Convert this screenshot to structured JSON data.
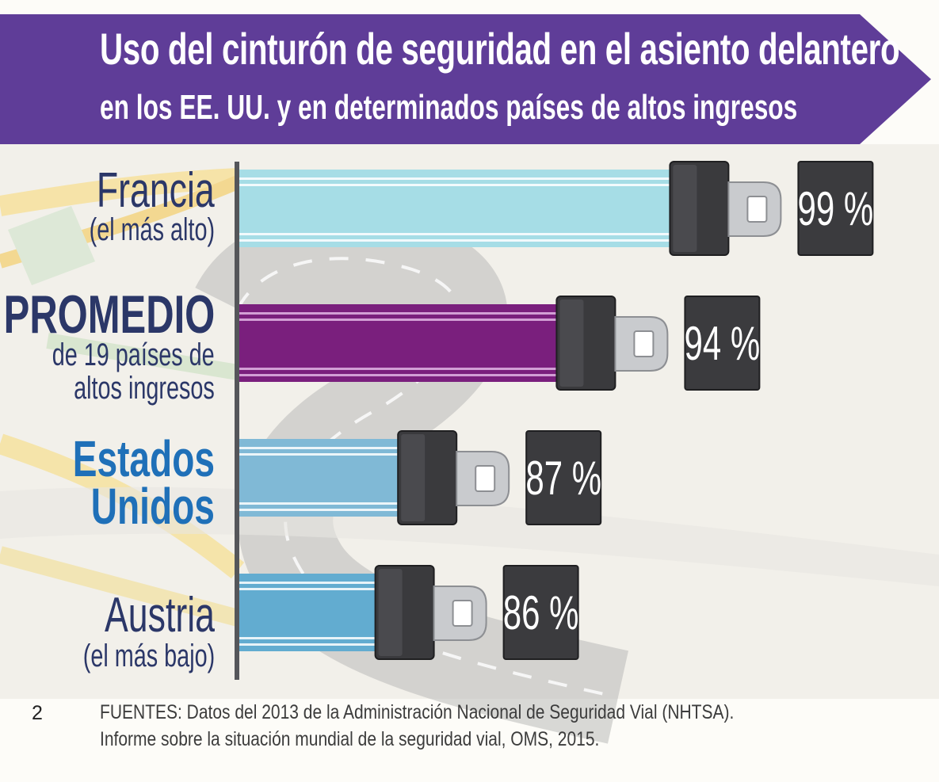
{
  "header": {
    "title": "Uso del cinturón de seguridad en el asiento delantero",
    "subtitle": "en los EE. UU. y en determinados países de altos ingresos"
  },
  "rows": [
    {
      "name_line1": "Francia",
      "name_line2": "(el más alto)"
    },
    {
      "name_line1": "PROMEDIO",
      "name_line2": "de 19 países de",
      "name_line3": "altos ingresos"
    },
    {
      "name_line1": "Estados",
      "name_line2": "Unidos"
    },
    {
      "name_line1": "Austria",
      "name_line2": "(el más bajo)"
    }
  ],
  "chart_data": {
    "type": "bar",
    "orientation": "horizontal",
    "categories": [
      "Francia",
      "PROMEDIO",
      "Estados Unidos",
      "Austria"
    ],
    "values": [
      99,
      94,
      87,
      86
    ],
    "value_labels": [
      "99 %",
      "94 %",
      "87 %",
      "86 %"
    ],
    "unit": "%",
    "colors": [
      "#a6dde6",
      "#7a1f7d",
      "#80b9d6",
      "#62acd0"
    ],
    "stripe_colors": [
      "#ffffff",
      "#e2b6e4",
      "#ffffff",
      "#ffffff"
    ],
    "title": "Uso del cinturón de seguridad en el asiento delantero",
    "xlabel": "",
    "ylabel": ""
  },
  "footer": {
    "page_number": "2",
    "line1": "FUENTES: Datos del 2013 de la Administración Nacional de Seguridad Vial (NHTSA).",
    "line2": "Informe sobre la situación mundial de la seguridad vial, OMS, 2015."
  },
  "colors": {
    "banner": "#5f3d98",
    "navy": "#2b3768",
    "us_blue": "#1f70b8",
    "axis": "#55565a"
  }
}
